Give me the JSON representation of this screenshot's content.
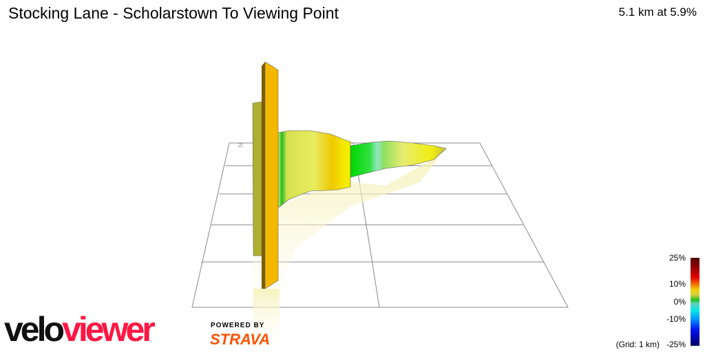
{
  "header": {
    "title": "Stocking Lane - Scholarstown To Viewing Point",
    "summary": "5.1 km at 5.9%"
  },
  "chart_data": {
    "type": "area",
    "title": "Stocking Lane - Scholarstown To Viewing Point",
    "distance_km": 5.1,
    "avg_gradient_pct": 5.9,
    "grid_note": "(Grid: 1 km)",
    "north_marker": "N",
    "colorscale": {
      "ticks": [
        "25%",
        "10%",
        "0%",
        "-10%",
        "-25%"
      ],
      "range": [
        -25,
        25
      ],
      "colors": [
        "#500000",
        "#e00000",
        "#f0d000",
        "#20c020",
        "#00e8e8",
        "#0010f0",
        "#000060"
      ]
    }
  },
  "branding": {
    "logo_part1": "velo",
    "logo_part2": "viewer",
    "powered_by": "POWERED BY",
    "strava": "STRAVA"
  }
}
